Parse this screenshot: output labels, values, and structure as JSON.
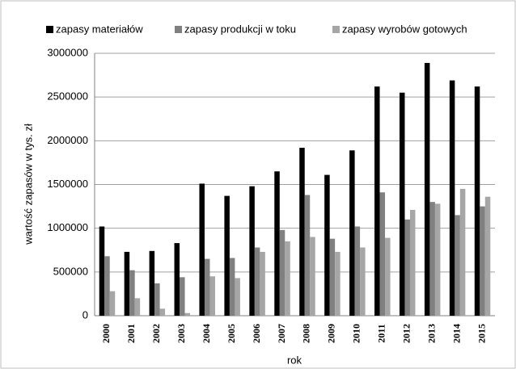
{
  "chart_data": {
    "type": "bar",
    "categories": [
      "2000",
      "2001",
      "2002",
      "2003",
      "2004",
      "2005",
      "2006",
      "2007",
      "2008",
      "2009",
      "2010",
      "2011",
      "2012",
      "2013",
      "2014",
      "2015"
    ],
    "series": [
      {
        "name": "zapasy materiałów",
        "color": "#000000",
        "values": [
          1020000,
          730000,
          740000,
          830000,
          1510000,
          1370000,
          1480000,
          1650000,
          1920000,
          1610000,
          1890000,
          2620000,
          2550000,
          2890000,
          2690000,
          2620000
        ]
      },
      {
        "name": "zapasy produkcji w toku",
        "color": "#808080",
        "values": [
          680000,
          520000,
          370000,
          440000,
          650000,
          660000,
          780000,
          980000,
          1380000,
          880000,
          1020000,
          1410000,
          1100000,
          1300000,
          1150000,
          1250000
        ]
      },
      {
        "name": "zapasy wyrobów gotowych",
        "color": "#a6a6a6",
        "values": [
          280000,
          200000,
          80000,
          30000,
          450000,
          430000,
          730000,
          850000,
          900000,
          730000,
          780000,
          890000,
          1210000,
          1280000,
          1450000,
          1360000
        ]
      }
    ],
    "xlabel": "rok",
    "ylabel": "wartość zapasów w tys. zł",
    "ylim": [
      0,
      3000000
    ],
    "yticks": [
      0,
      500000,
      1000000,
      1500000,
      2000000,
      2500000,
      3000000
    ],
    "grid": true,
    "legend": "top"
  }
}
